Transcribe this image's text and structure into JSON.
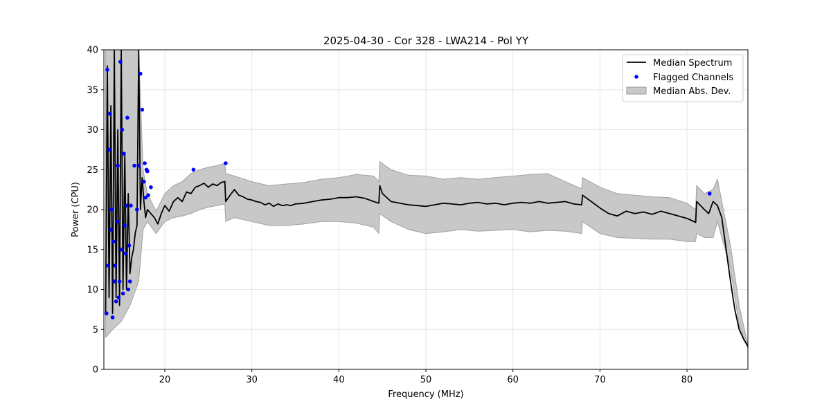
{
  "chart_data": {
    "type": "line",
    "title": "2025-04-30 - Cor 328 - LWA214 - Pol YY",
    "xlabel": "Frequency (MHz)",
    "ylabel": "Power (CPU)",
    "xlim": [
      13,
      87
    ],
    "ylim": [
      0,
      40
    ],
    "xticks": [
      20,
      30,
      40,
      50,
      60,
      70,
      80
    ],
    "yticks": [
      0,
      5,
      10,
      15,
      20,
      25,
      30,
      35,
      40
    ],
    "grid": true,
    "legend_position": "top-right",
    "legend": [
      {
        "label": "Median Spectrum",
        "kind": "line",
        "color": "#000000"
      },
      {
        "label": "Flagged Channels",
        "kind": "marker",
        "color": "#0000ff"
      },
      {
        "label": "Median Abs. Dev.",
        "kind": "band",
        "color": "#b3b3b3"
      }
    ],
    "series": [
      {
        "name": "Median Spectrum",
        "color": "#000000",
        "x": [
          13.2,
          13.4,
          13.6,
          13.8,
          14.0,
          14.2,
          14.4,
          14.6,
          14.8,
          15.0,
          15.2,
          15.4,
          15.6,
          15.8,
          16.0,
          16.2,
          16.4,
          16.6,
          16.8,
          17.0,
          17.2,
          17.4,
          17.6,
          17.8,
          18.0,
          18.4,
          18.8,
          19.2,
          19.6,
          20.0,
          20.5,
          21.0,
          21.5,
          22.0,
          22.5,
          23.0,
          23.5,
          24.0,
          24.5,
          25.0,
          25.5,
          26.0,
          26.5,
          26.9,
          27.0,
          27.5,
          28.0,
          28.5,
          29.0,
          29.5,
          30.0,
          30.5,
          31.0,
          31.5,
          32.0,
          32.5,
          33.0,
          33.5,
          34.0,
          34.5,
          35.0,
          36.0,
          37.0,
          38.0,
          39.0,
          40.0,
          41.0,
          42.0,
          43.0,
          44.0,
          44.6,
          44.7,
          45.0,
          46.0,
          47.0,
          48.0,
          49.0,
          50.0,
          51.0,
          52.0,
          53.0,
          54.0,
          55.0,
          56.0,
          57.0,
          58.0,
          59.0,
          60.0,
          61.0,
          62.0,
          63.0,
          64.0,
          65.0,
          66.0,
          67.0,
          67.9,
          68.0,
          69.0,
          70.0,
          71.0,
          72.0,
          73.0,
          74.0,
          75.0,
          76.0,
          77.0,
          78.0,
          79.0,
          80.0,
          81.0,
          81.1,
          82.0,
          82.5,
          83.0,
          83.5,
          84.0,
          84.5,
          85.0,
          85.5,
          86.0,
          86.5,
          87.0
        ],
        "values": [
          7.0,
          38.0,
          9.0,
          33.0,
          7.0,
          40.0,
          9.0,
          30.0,
          8.0,
          40.0,
          10.0,
          27.0,
          10.0,
          22.0,
          12.0,
          14.0,
          15.0,
          17.0,
          18.0,
          40.0,
          20.0,
          24.0,
          21.0,
          19.0,
          20.0,
          19.5,
          19.0,
          18.2,
          19.5,
          20.5,
          19.8,
          21.0,
          21.5,
          21.0,
          22.2,
          22.0,
          22.8,
          23.0,
          23.3,
          22.8,
          23.2,
          23.0,
          23.4,
          23.5,
          21.0,
          21.8,
          22.5,
          21.8,
          21.6,
          21.3,
          21.2,
          21.0,
          20.9,
          20.6,
          20.8,
          20.4,
          20.7,
          20.5,
          20.6,
          20.5,
          20.7,
          20.8,
          21.0,
          21.2,
          21.3,
          21.5,
          21.5,
          21.6,
          21.4,
          21.0,
          20.8,
          23.0,
          22.0,
          21.0,
          20.8,
          20.6,
          20.5,
          20.4,
          20.6,
          20.8,
          20.7,
          20.6,
          20.8,
          20.9,
          20.7,
          20.8,
          20.6,
          20.8,
          20.9,
          20.8,
          21.0,
          20.8,
          20.9,
          21.0,
          20.7,
          20.6,
          21.8,
          21.0,
          20.2,
          19.5,
          19.2,
          19.8,
          19.5,
          19.7,
          19.4,
          19.8,
          19.5,
          19.2,
          18.9,
          18.4,
          21.0,
          20.0,
          19.5,
          21.0,
          20.5,
          19.0,
          15.0,
          11.0,
          7.5,
          5.0,
          3.8,
          2.9
        ]
      },
      {
        "name": "Median Abs. Dev.",
        "color": "#b3b3b3",
        "x": [
          13.2,
          14.0,
          15.0,
          16.0,
          17.0,
          17.5,
          18.0,
          19.0,
          20.0,
          21.0,
          22.0,
          23.0,
          24.0,
          25.0,
          26.0,
          26.9,
          27.0,
          28.0,
          30.0,
          32.0,
          34.0,
          36.0,
          38.0,
          40.0,
          42.0,
          44.0,
          44.6,
          44.7,
          46.0,
          48.0,
          50.0,
          52.0,
          54.0,
          56.0,
          58.0,
          60.0,
          62.0,
          64.0,
          66.0,
          67.9,
          68.0,
          70.0,
          72.0,
          74.0,
          76.0,
          78.0,
          80.0,
          81.0,
          81.1,
          82.0,
          83.0,
          83.5,
          84.0,
          85.0,
          86.0,
          87.0
        ],
        "upper": [
          40.0,
          40.0,
          40.0,
          40.0,
          40.0,
          25.0,
          22.0,
          19.8,
          22.0,
          23.0,
          23.5,
          24.5,
          25.0,
          25.3,
          25.5,
          25.8,
          24.5,
          24.2,
          23.5,
          23.0,
          23.2,
          23.4,
          23.8,
          24.0,
          24.4,
          24.2,
          23.5,
          26.0,
          25.0,
          24.3,
          24.2,
          23.8,
          24.0,
          23.8,
          24.0,
          24.2,
          24.4,
          24.5,
          23.5,
          22.6,
          24.0,
          22.8,
          22.0,
          21.8,
          21.6,
          21.5,
          20.8,
          20.0,
          23.0,
          22.0,
          22.5,
          23.8,
          21.0,
          15.5,
          8.0,
          3.0
        ],
        "lower": [
          4.0,
          5.0,
          6.0,
          8.0,
          11.0,
          17.5,
          18.5,
          17.0,
          18.5,
          19.0,
          19.2,
          19.5,
          20.0,
          20.3,
          20.5,
          20.7,
          18.5,
          19.0,
          18.5,
          18.0,
          18.0,
          18.2,
          18.5,
          18.5,
          18.3,
          17.8,
          17.0,
          19.5,
          18.5,
          17.5,
          17.0,
          17.2,
          17.5,
          17.3,
          17.4,
          17.5,
          17.2,
          17.4,
          17.3,
          17.0,
          18.5,
          17.0,
          16.5,
          16.4,
          16.3,
          16.3,
          16.0,
          16.0,
          17.0,
          16.5,
          16.5,
          18.5,
          16.5,
          12.5,
          5.5,
          2.6
        ]
      },
      {
        "name": "Flagged Channels",
        "color": "#0000ff",
        "x": [
          13.3,
          13.4,
          13.5,
          13.6,
          13.7,
          13.8,
          13.9,
          14.0,
          14.1,
          14.2,
          14.3,
          14.4,
          14.5,
          14.6,
          14.7,
          14.8,
          14.9,
          15.0,
          15.1,
          15.2,
          15.3,
          15.4,
          15.5,
          15.6,
          15.7,
          15.8,
          15.9,
          16.0,
          16.1,
          16.5,
          16.8,
          17.0,
          17.2,
          17.4,
          17.6,
          17.7,
          17.8,
          17.9,
          18.0,
          18.1,
          18.4,
          23.3,
          27.0,
          82.6
        ],
        "values": [
          7.0,
          37.5,
          13.0,
          27.5,
          32.0,
          17.5,
          20.0,
          6.5,
          16.0,
          11.0,
          13.0,
          8.5,
          18.5,
          25.5,
          9.0,
          11.0,
          38.5,
          15.0,
          30.0,
          9.5,
          27.0,
          18.0,
          14.5,
          20.5,
          31.5,
          10.0,
          15.5,
          11.0,
          20.5,
          25.5,
          20.0,
          25.5,
          37.0,
          32.5,
          23.5,
          25.8,
          21.5,
          25.0,
          24.8,
          21.8,
          22.8,
          25.0,
          25.8,
          22.0
        ]
      }
    ]
  }
}
